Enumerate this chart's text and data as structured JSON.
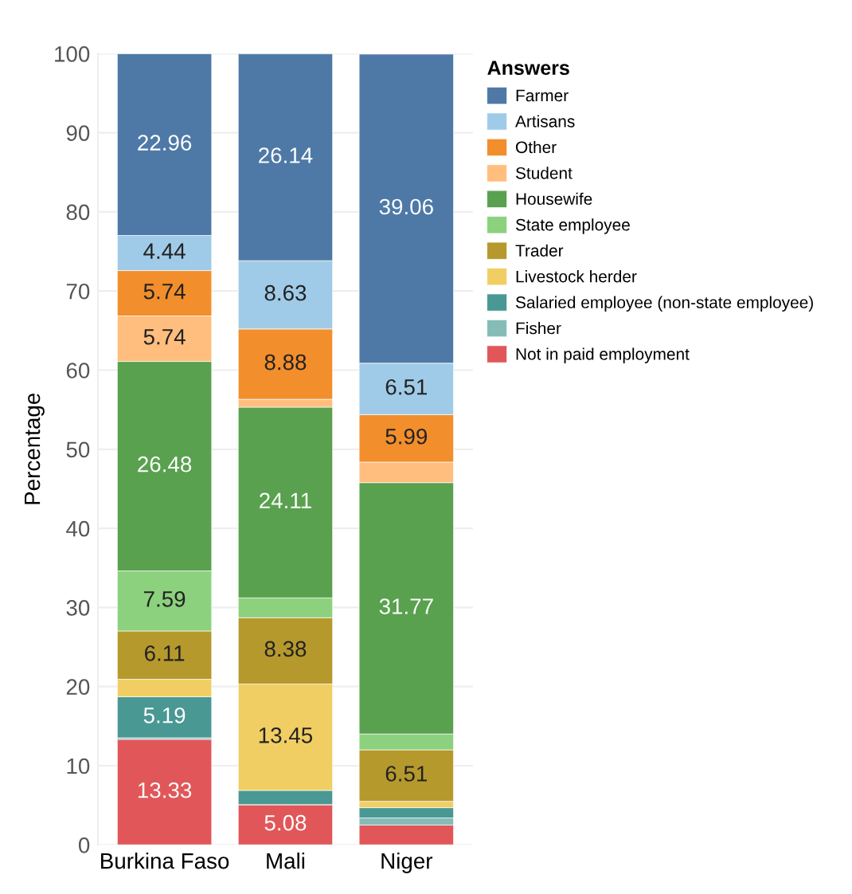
{
  "chart_data": {
    "type": "bar",
    "stacked": true,
    "ylabel": "Percentage",
    "legend_title": "Answers",
    "legend": "right",
    "grid": "y",
    "categories": [
      "Burkina Faso",
      "Mali",
      "Niger"
    ],
    "ylim": [
      0,
      100
    ],
    "yticks": [
      0,
      10,
      20,
      30,
      40,
      50,
      60,
      70,
      80,
      90,
      100
    ],
    "series": [
      {
        "name": "Not in paid employment",
        "color": "#e15759",
        "values": [
          13.33,
          5.08,
          2.5
        ],
        "value_labels": [
          "13.33",
          "5.08",
          null
        ]
      },
      {
        "name": "Fisher",
        "color": "#86bcb6",
        "values": [
          0.2,
          0,
          0.9
        ],
        "value_labels": [
          null,
          null,
          null
        ]
      },
      {
        "name": "Salaried employee (non-state employee)",
        "color": "#499894",
        "values": [
          5.19,
          1.8,
          1.3
        ],
        "value_labels": [
          "5.19",
          null,
          null
        ]
      },
      {
        "name": "Livestock herder",
        "color": "#f1ce63",
        "values": [
          2.2,
          13.45,
          0.8
        ],
        "value_labels": [
          null,
          "13.45",
          null
        ]
      },
      {
        "name": "Trader",
        "color": "#b6992d",
        "values": [
          6.11,
          8.38,
          6.51
        ],
        "value_labels": [
          "6.11",
          "8.38",
          "6.51"
        ]
      },
      {
        "name": "State employee",
        "color": "#8cd17d",
        "values": [
          7.59,
          2.5,
          2.0
        ],
        "value_labels": [
          "7.59",
          null,
          null
        ]
      },
      {
        "name": "Housewife",
        "color": "#59a14f",
        "values": [
          26.48,
          24.11,
          31.77
        ],
        "value_labels": [
          "26.48",
          "24.11",
          "31.77"
        ]
      },
      {
        "name": "Student",
        "color": "#ffbe7d",
        "values": [
          5.74,
          1.0,
          2.6
        ],
        "value_labels": [
          "5.74",
          null,
          null
        ]
      },
      {
        "name": "Other",
        "color": "#f28e2b",
        "values": [
          5.74,
          8.88,
          5.99
        ],
        "value_labels": [
          "5.74",
          "8.88",
          "5.99"
        ]
      },
      {
        "name": "Artisans",
        "color": "#a0cbe8",
        "values": [
          4.44,
          8.63,
          6.51
        ],
        "value_labels": [
          "4.44",
          "8.63",
          "6.51"
        ]
      },
      {
        "name": "Farmer",
        "color": "#4e79a7",
        "values": [
          22.96,
          26.14,
          39.06
        ],
        "value_labels": [
          "22.96",
          "26.14",
          "39.06"
        ]
      }
    ]
  }
}
